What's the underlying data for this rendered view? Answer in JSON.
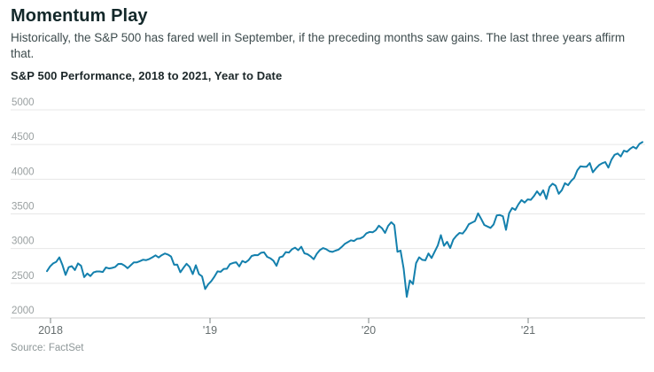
{
  "page": {
    "title": "Momentum Play",
    "subtitle": "Historically, the S&P 500 has fared well in September, if the preceding months saw gains. The last three years affirm that.",
    "source": "Source: FactSet"
  },
  "colors": {
    "line": "#1480ad",
    "gridline": "#e7e7e7",
    "baseline": "#cfcfcf",
    "tick": "#7d8586"
  },
  "chart_data": {
    "type": "line",
    "title": "S&P 500 Performance, 2018 to 2021, Year to Date",
    "xlabel": "",
    "ylabel": "",
    "ylim": [
      2000,
      5000
    ],
    "yticks": [
      2000,
      2500,
      3000,
      3500,
      4000,
      4500,
      5000
    ],
    "xticklabels": [
      "2018",
      "'19",
      "'20",
      "'21"
    ],
    "grid": "horizontal",
    "legend": "none",
    "frequency": "weekly closes, Dec 2017 through Sep 2021",
    "series": [
      {
        "name": "S&P 500",
        "values": [
          2674,
          2743,
          2786,
          2810,
          2873,
          2762,
          2620,
          2732,
          2747,
          2691,
          2787,
          2752,
          2588,
          2641,
          2604,
          2656,
          2670,
          2670,
          2663,
          2728,
          2713,
          2721,
          2735,
          2779,
          2780,
          2755,
          2718,
          2760,
          2801,
          2802,
          2819,
          2840,
          2833,
          2850,
          2875,
          2902,
          2872,
          2905,
          2930,
          2914,
          2886,
          2767,
          2768,
          2659,
          2723,
          2781,
          2736,
          2632,
          2760,
          2633,
          2600,
          2417,
          2486,
          2532,
          2596,
          2671,
          2665,
          2707,
          2708,
          2776,
          2793,
          2803,
          2743,
          2822,
          2801,
          2834,
          2893,
          2907,
          2905,
          2940,
          2946,
          2881,
          2860,
          2826,
          2752,
          2873,
          2887,
          2950,
          2942,
          2990,
          3014,
          2977,
          3026,
          2932,
          2919,
          2889,
          2847,
          2926,
          2979,
          3007,
          2992,
          2962,
          2952,
          2970,
          2986,
          3023,
          3067,
          3093,
          3120,
          3110,
          3141,
          3146,
          3169,
          3221,
          3240,
          3235,
          3265,
          3330,
          3295,
          3225,
          3328,
          3380,
          3338,
          2954,
          2972,
          2711,
          2305,
          2541,
          2489,
          2790,
          2875,
          2837,
          2831,
          2930,
          2864,
          2955,
          3044,
          3194,
          3041,
          3098,
          3009,
          3130,
          3185,
          3225,
          3216,
          3271,
          3351,
          3373,
          3397,
          3508,
          3427,
          3341,
          3319,
          3298,
          3348,
          3477,
          3484,
          3465,
          3270,
          3509,
          3585,
          3558,
          3638,
          3699,
          3663,
          3709,
          3703,
          3756,
          3825,
          3768,
          3841,
          3714,
          3887,
          3935,
          3907,
          3790,
          3842,
          3943,
          3913,
          3975,
          4020,
          4129,
          4185,
          4180,
          4181,
          4233,
          4100,
          4156,
          4204,
          4230,
          4247,
          4166,
          4281,
          4352,
          4370,
          4327,
          4412,
          4395,
          4437,
          4468,
          4442,
          4509,
          4535
        ]
      }
    ]
  }
}
